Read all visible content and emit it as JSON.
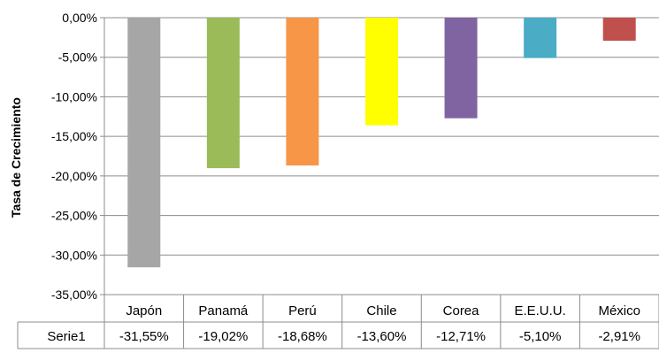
{
  "chart_data": {
    "type": "bar",
    "title": "",
    "xlabel": "",
    "ylabel": "Tasa de Crecimiento",
    "ylim": [
      -35,
      0
    ],
    "ytick_labels": [
      "0,00%",
      "-5,00%",
      "-10,00%",
      "-15,00%",
      "-20,00%",
      "-25,00%",
      "-30,00%",
      "-35,00%"
    ],
    "grid": true,
    "legend": "none",
    "categories": [
      "Japón",
      "Panamá",
      "Perú",
      "Chile",
      "Corea",
      "E.E.U.U.",
      "México"
    ],
    "series": [
      {
        "name": "Serie1",
        "values": [
          -31.55,
          -19.02,
          -18.68,
          -13.6,
          -12.71,
          -5.1,
          -2.91
        ],
        "labels": [
          "-31,55%",
          "-19,02%",
          "-18,68%",
          "-13,60%",
          "-12,71%",
          "-5,10%",
          "-2,91%"
        ],
        "colors": [
          "#a6a6a6",
          "#9bbb59",
          "#f79646",
          "#ffff00",
          "#8064a2",
          "#4bacc6",
          "#c0504d"
        ]
      }
    ],
    "data_table": true
  }
}
